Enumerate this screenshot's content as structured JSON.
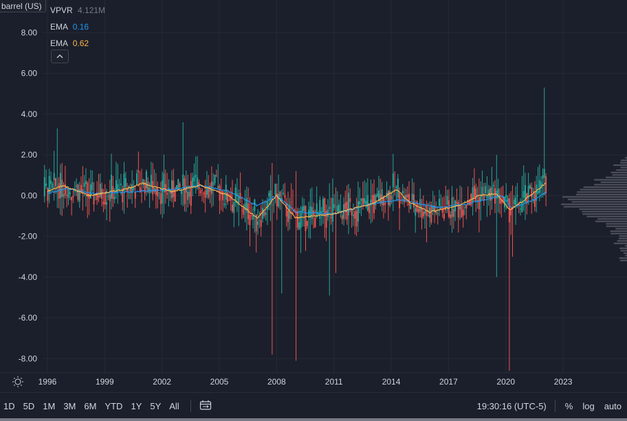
{
  "toolbar": {
    "unit_badge": "barrel (US)",
    "collapse_icon": "chevron-up-icon",
    "settings_icon": "sun-settings-icon",
    "compare_icon": "calendar-range-icon"
  },
  "legend": [
    {
      "name": "VPVR",
      "value": "4.121M",
      "color": "#787b86"
    },
    {
      "name": "EMA",
      "value": "0.16",
      "color": "#2196f3"
    },
    {
      "name": "EMA",
      "value": "0.62",
      "color": "#ffb74d"
    }
  ],
  "bottom_bar": {
    "ranges": [
      "1D",
      "5D",
      "1M",
      "3M",
      "6M",
      "YTD",
      "1Y",
      "5Y",
      "All"
    ],
    "clock": "19:30:16 (UTC-5)",
    "percent": "%",
    "log": "log",
    "auto": "auto"
  },
  "colors": {
    "background": "#1b1f2b",
    "grid": "#262a35",
    "up": "#26a69a",
    "down": "#ef5350",
    "ema_fast": "#2196f3",
    "ema_slow": "#ffb74d",
    "vpvr": "#5d606b"
  },
  "chart_data": {
    "type": "candlestick",
    "title": "",
    "xlabel": "",
    "ylabel": "",
    "y_ticks": [
      "8.00",
      "6.00",
      "4.00",
      "2.00",
      "0.00",
      "-2.00",
      "-4.00",
      "-6.00",
      "-8.00"
    ],
    "x_ticks": [
      "1996",
      "1999",
      "2002",
      "2005",
      "2008",
      "2011",
      "2014",
      "2017",
      "2020",
      "2023"
    ],
    "ylim": [
      -8.7,
      9.6
    ],
    "xlim": [
      1995.75,
      2024.4
    ],
    "grid": true,
    "ema_fast_anchors": [
      [
        1996.0,
        0.1
      ],
      [
        1997.0,
        0.35
      ],
      [
        1998.5,
        0.1
      ],
      [
        2000.5,
        0.2
      ],
      [
        2002.5,
        0.3
      ],
      [
        2004.0,
        0.5
      ],
      [
        2005.5,
        0.2
      ],
      [
        2007.0,
        -0.5
      ],
      [
        2008.0,
        0.0
      ],
      [
        2009.0,
        -0.8
      ],
      [
        2011.0,
        -0.9
      ],
      [
        2013.0,
        -0.4
      ],
      [
        2014.5,
        -0.2
      ],
      [
        2016.5,
        -0.6
      ],
      [
        2018.0,
        -0.4
      ],
      [
        2019.8,
        0.0
      ],
      [
        2020.3,
        -0.6
      ],
      [
        2021.5,
        -0.2
      ],
      [
        2022.1,
        0.16
      ]
    ],
    "ema_slow_anchors": [
      [
        1996.0,
        0.2
      ],
      [
        1996.8,
        0.5
      ],
      [
        1998.2,
        0.0
      ],
      [
        2000.0,
        0.3
      ],
      [
        2001.0,
        0.6
      ],
      [
        2002.5,
        0.2
      ],
      [
        2004.0,
        0.5
      ],
      [
        2005.5,
        0.0
      ],
      [
        2007.0,
        -1.1
      ],
      [
        2008.0,
        0.0
      ],
      [
        2009.0,
        -1.1
      ],
      [
        2011.0,
        -0.9
      ],
      [
        2013.0,
        -0.4
      ],
      [
        2014.3,
        0.3
      ],
      [
        2014.9,
        -0.3
      ],
      [
        2016.0,
        -0.8
      ],
      [
        2017.5,
        -0.5
      ],
      [
        2018.6,
        0.0
      ],
      [
        2019.5,
        0.1
      ],
      [
        2020.2,
        -0.7
      ],
      [
        2021.0,
        -0.2
      ],
      [
        2022.1,
        0.62
      ]
    ],
    "spikes": [
      [
        1996.55,
        3.3,
        -0.6
      ],
      [
        2003.1,
        3.6,
        -0.3
      ],
      [
        2007.8,
        1.6,
        -7.8
      ],
      [
        2008.3,
        0.3,
        -4.8
      ],
      [
        2009.05,
        1.2,
        -8.1
      ],
      [
        2010.8,
        0.6,
        -4.9
      ],
      [
        2011.1,
        0.4,
        -3.8
      ],
      [
        2019.5,
        2.0,
        -4.0
      ],
      [
        2020.15,
        -0.2,
        -8.6
      ],
      [
        2020.35,
        0.5,
        -3.0
      ],
      [
        2022.05,
        5.3,
        0.2
      ]
    ],
    "vpvr_peak_value": 4.121
  }
}
